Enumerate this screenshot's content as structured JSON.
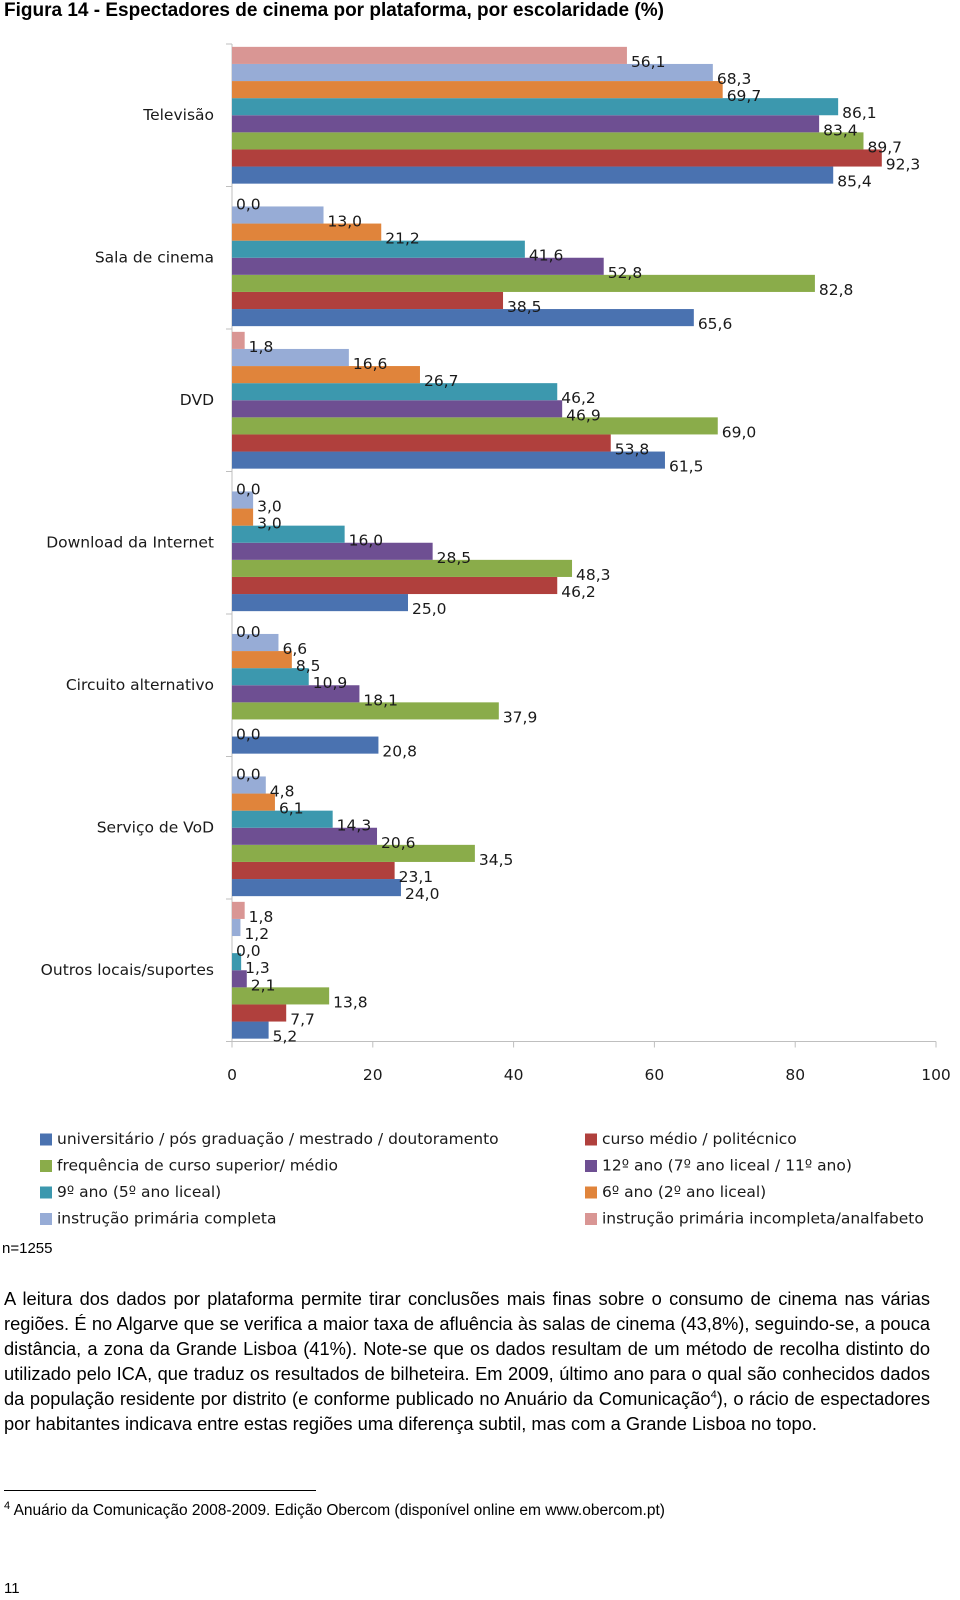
{
  "title": "Figura 14 - Espectadores de cinema por plataforma, por escolaridade (%)",
  "chart_data": {
    "type": "bar",
    "orientation": "horizontal",
    "categories": [
      "Televisão",
      "Sala de cinema",
      "DVD",
      "Download da Internet",
      "Circuito alternativo",
      "Serviço de VoD",
      "Outros locais/suportes"
    ],
    "series": [
      {
        "name": "universitário / pós graduação / mestrado / doutoramento",
        "color": "#4a72b0",
        "values": [
          85.4,
          65.6,
          61.5,
          25.0,
          20.8,
          24.0,
          5.2
        ],
        "value_labels": [
          "85,4",
          "65,6",
          "61,5",
          "25,0",
          "20,8",
          "24,0",
          "5,2"
        ]
      },
      {
        "name": "curso médio / politécnico",
        "color": "#b0403d",
        "values": [
          92.3,
          38.5,
          53.8,
          46.2,
          0.0,
          23.1,
          7.7
        ],
        "value_labels": [
          "92,3",
          "38,5",
          "53,8",
          "46,2",
          "0,0",
          "23,1",
          "7,7"
        ]
      },
      {
        "name": "frequência de curso superior/ médio",
        "color": "#8aac4a",
        "values": [
          89.7,
          82.8,
          69.0,
          48.3,
          37.9,
          34.5,
          13.8
        ],
        "value_labels": [
          "89,7",
          "82,8",
          "69,0",
          "48,3",
          "37,9",
          "34,5",
          "13,8"
        ]
      },
      {
        "name": "12º ano (7º ano liceal / 11º ano)",
        "color": "#6e4f92",
        "values": [
          83.4,
          52.8,
          46.9,
          28.5,
          18.1,
          20.6,
          2.1
        ],
        "value_labels": [
          "83,4",
          "52,8",
          "46,9",
          "28,5",
          "18,1",
          "20,6",
          "2,1"
        ]
      },
      {
        "name": "9º ano (5º ano liceal)",
        "color": "#3c98ae",
        "values": [
          86.1,
          41.6,
          46.2,
          16.0,
          10.9,
          14.3,
          1.3
        ],
        "value_labels": [
          "86,1",
          "41,6",
          "46,2",
          "16,0",
          "10,9",
          "14,3",
          "1,3"
        ]
      },
      {
        "name": "6º ano (2º ano liceal)",
        "color": "#e0843b",
        "values": [
          69.7,
          21.2,
          26.7,
          3.0,
          8.5,
          6.1,
          0.0
        ],
        "value_labels": [
          "69,7",
          "21,2",
          "26,7",
          "3,0",
          "8,5",
          "6,1",
          "0,0"
        ]
      },
      {
        "name": "instrução primária completa",
        "color": "#97acd6",
        "values": [
          68.3,
          13.0,
          16.6,
          3.0,
          6.6,
          4.8,
          1.2
        ],
        "value_labels": [
          "68,3",
          "13,0",
          "16,6",
          "3,0",
          "6,6",
          "4,8",
          "1,2"
        ]
      },
      {
        "name": "instrução primária incompleta/analfabeto",
        "color": "#d99694",
        "values": [
          56.1,
          0.0,
          1.8,
          0.0,
          0.0,
          0.0,
          1.8
        ],
        "value_labels": [
          "56,1",
          "0,0",
          "1,8",
          "0,0",
          "0,0",
          "0,0",
          "1,8"
        ]
      }
    ],
    "xlim": [
      0,
      100
    ],
    "xticks": [
      0,
      20,
      40,
      60,
      80,
      100
    ],
    "grid": false
  },
  "note": "n=1255",
  "paragraph": {
    "before": "A leitura dos dados por plataforma permite tirar conclusões mais finas sobre o consumo de cinema nas várias regiões. É no Algarve que se verifica a maior taxa de afluência às salas de cinema (43,8%), seguindo-se, a pouca distância, a zona da Grande Lisboa (41%). Note-se que os dados resultam de um método de recolha distinto do utilizado pelo ICA, que traduz os resultados de bilheteira. Em 2009, último ano para o qual são conhecidos dados da população residente por distrito (e conforme publicado no Anuário da Comunicação",
    "footnote_ref": "4",
    "after": "), o rácio de espectadores por habitantes indicava entre estas regiões uma diferença subtil, mas com a Grande Lisboa no topo."
  },
  "footnote": {
    "number": "4",
    "text": "Anuário da Comunicação 2008-2009. Edição Obercom (disponível online em www.obercom.pt)"
  },
  "page_number": "11"
}
